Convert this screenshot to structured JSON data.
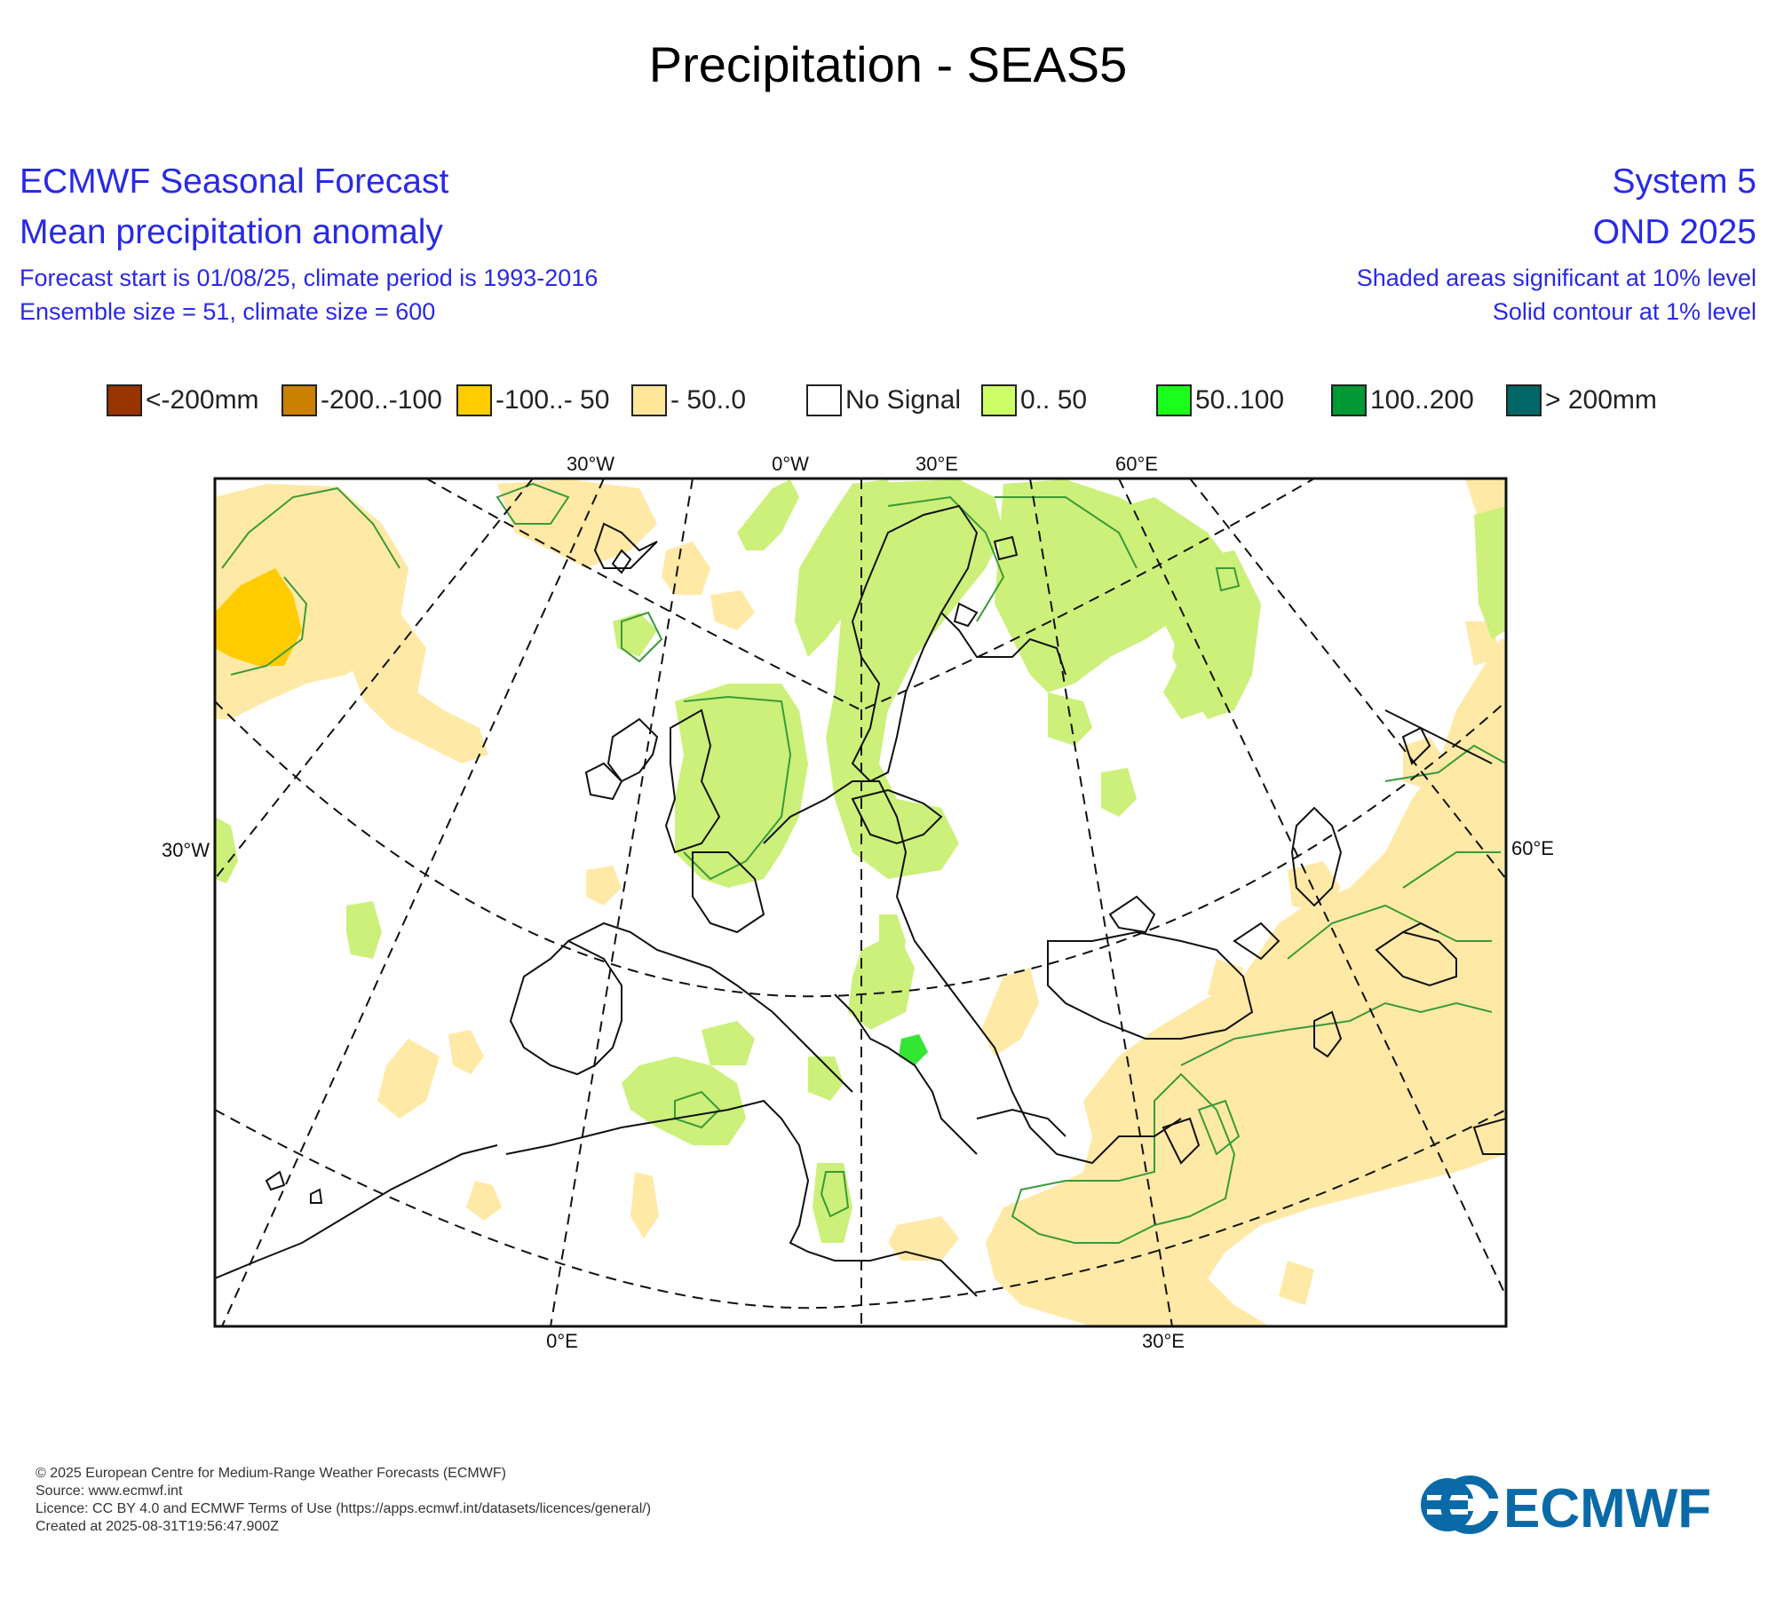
{
  "title": "Precipitation - SEAS5",
  "header": {
    "left_1": "ECMWF Seasonal Forecast",
    "left_2": "Mean precipitation anomaly",
    "left_3": "Forecast start is 01/08/25, climate period is 1993-2016",
    "left_4": "Ensemble size = 51, climate size = 600",
    "right_1": "System 5",
    "right_2": "OND 2025",
    "right_3": "Shaded areas significant at 10% level",
    "right_4": "Solid contour at 1% level"
  },
  "legend": [
    {
      "label": "<-200mm",
      "color": "#993300"
    },
    {
      "label": "-200..-100",
      "color": "#cc8000"
    },
    {
      "label": "-100..- 50",
      "color": "#ffcc00"
    },
    {
      "label": "- 50..0",
      "color": "#ffe699"
    },
    {
      "label": "No Signal",
      "color": "#ffffff"
    },
    {
      "label": "0.. 50",
      "color": "#ccff66"
    },
    {
      "label": "50..100",
      "color": "#1aff1a"
    },
    {
      "label": "100..200",
      "color": "#009933"
    },
    {
      "label": "> 200mm",
      "color": "#006666"
    }
  ],
  "map_labels": {
    "top": [
      "30°W",
      "0°W",
      "30°E",
      "60°E"
    ],
    "bottom": [
      "0°E",
      "30°E"
    ],
    "left": "30°W",
    "right": "60°E"
  },
  "colors": {
    "header_text": "#2929e6",
    "wet_significant": "#ccf07a",
    "dry_significant": "#ffe9a6",
    "dry_moderate": "#ffcc00",
    "wet_moderate": "#33e633",
    "contour_1pct": "#3a9a3a",
    "ecmwf_logo": "#0a6aa8"
  },
  "footer": {
    "line1": "© 2025 European Centre for Medium-Range Weather Forecasts (ECMWF)",
    "line2": "Source: www.ecmwf.int",
    "line3": "Licence: CC BY 4.0 and ECMWF Terms of Use (https://apps.ecmwf.int/datasets/licences/general/)",
    "line4": "Created at 2025-08-31T19:56:47.900Z"
  },
  "logo_text": "ECMWF"
}
